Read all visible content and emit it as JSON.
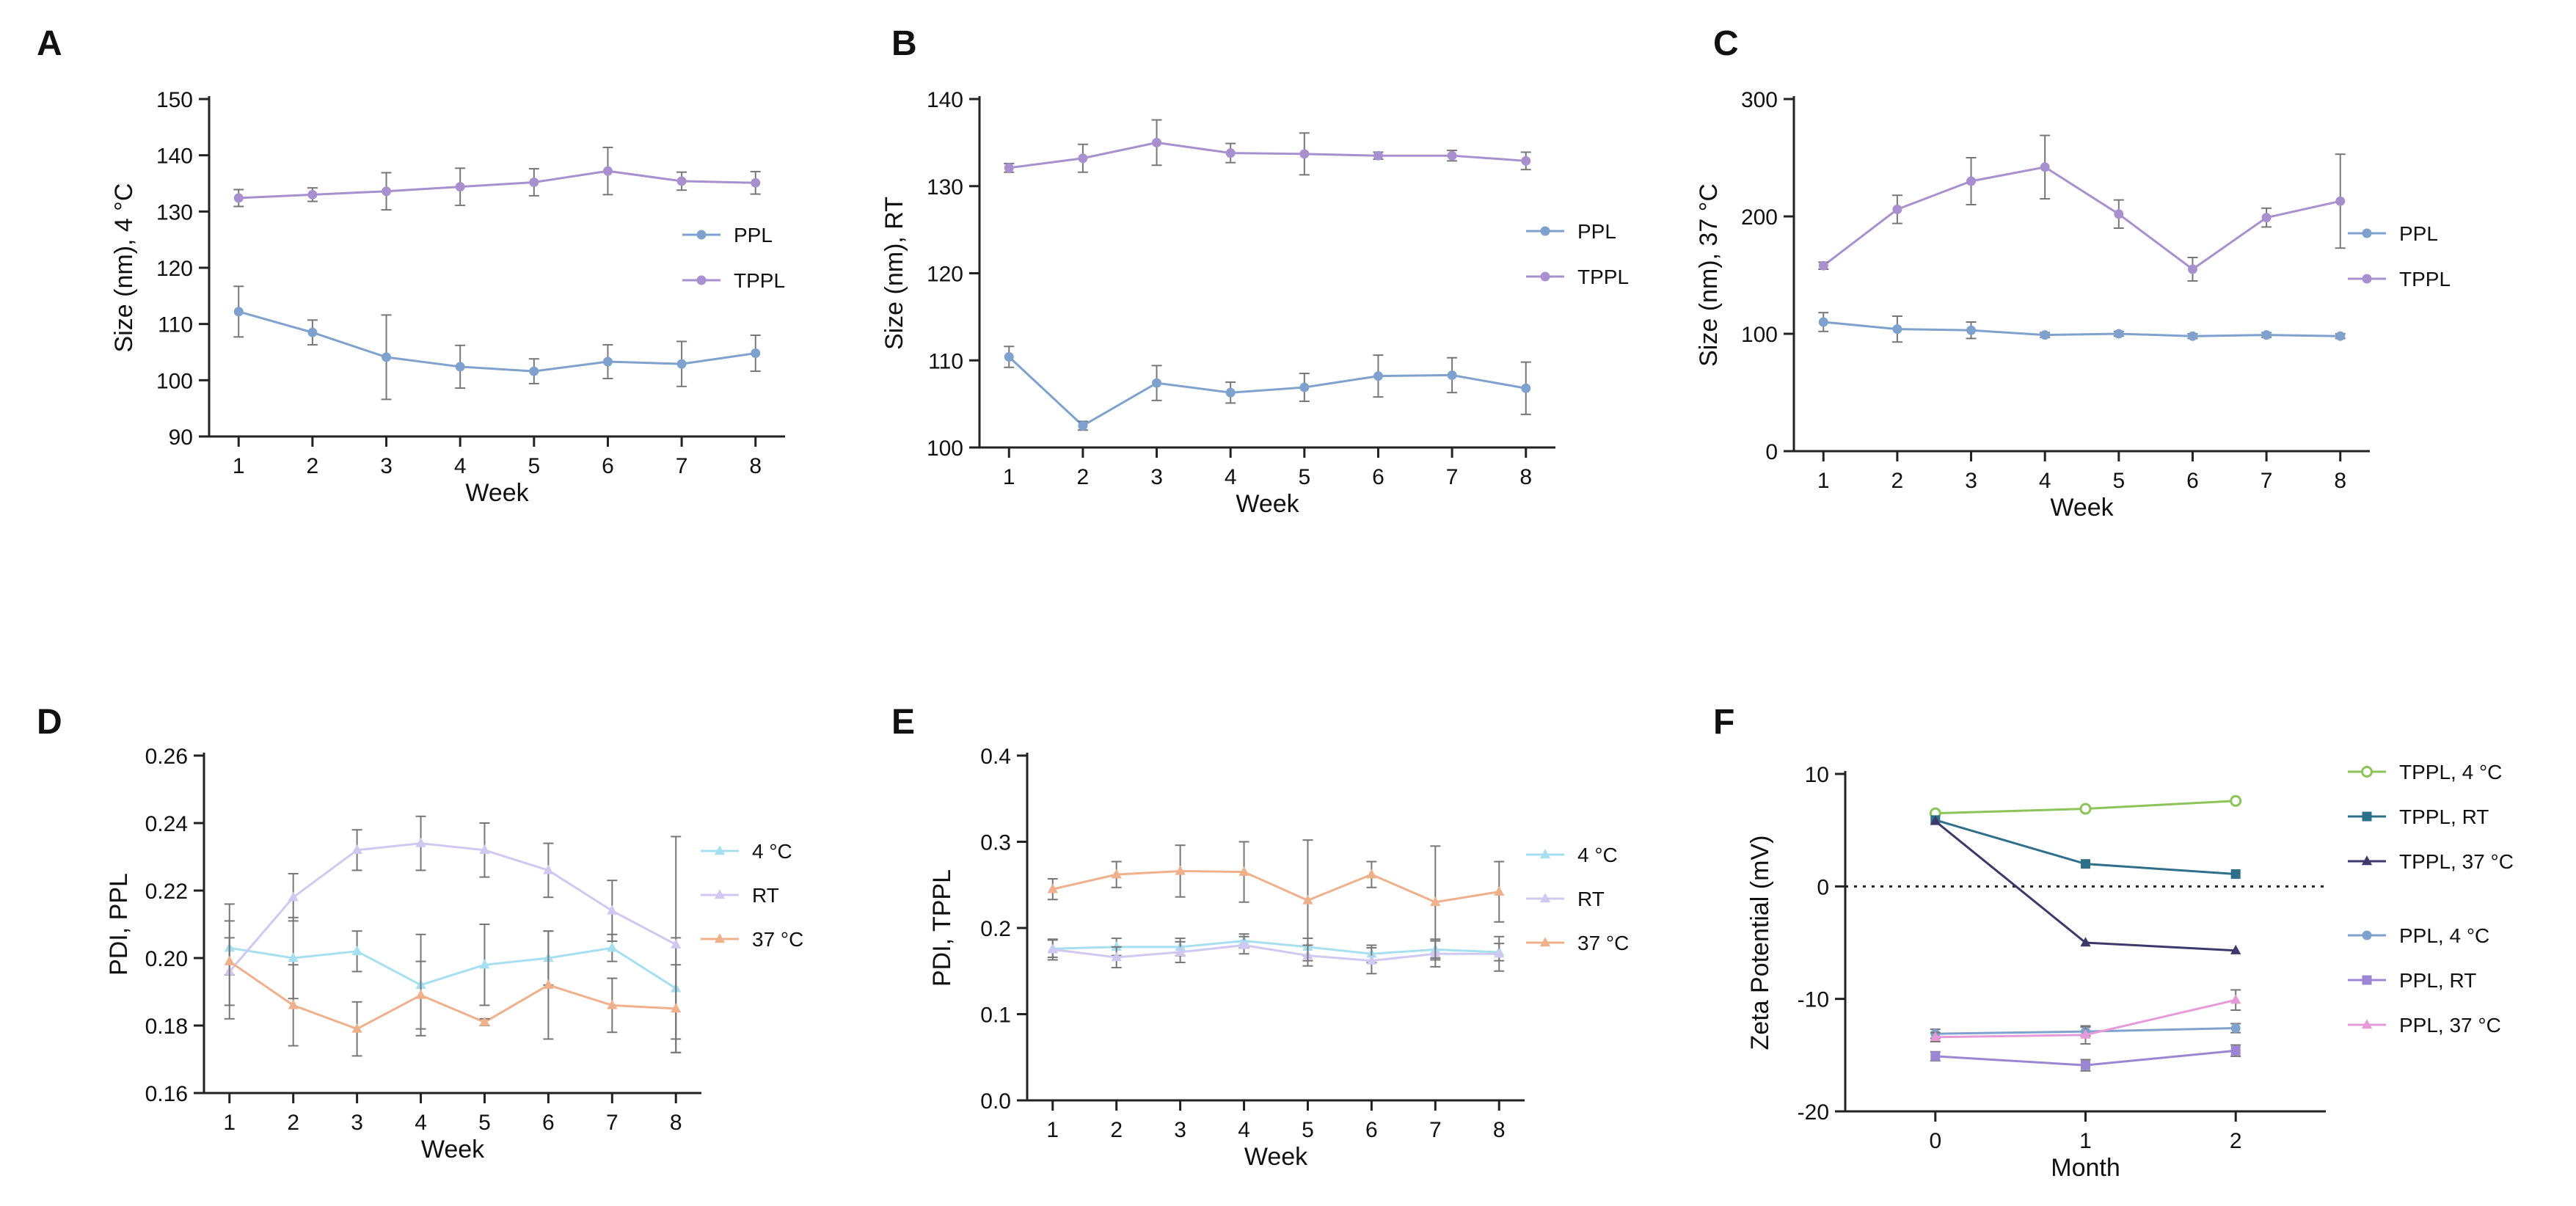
{
  "chart_data": [
    {
      "id": "A",
      "panel_label": "A",
      "type": "line",
      "xlabel": "Week",
      "ylabel": "Size (nm), 4 °C",
      "x": [
        1,
        2,
        3,
        4,
        5,
        6,
        7,
        8
      ],
      "x_tick_labels": [
        "1",
        "2",
        "3",
        "4",
        "5",
        "6",
        "7",
        "8"
      ],
      "xlim": [
        0.6,
        8.4
      ],
      "ylim": [
        90,
        150
      ],
      "y_ticks": [
        90,
        100,
        110,
        120,
        130,
        140,
        150
      ],
      "y_tick_labels": [
        "90",
        "100",
        "110",
        "120",
        "130",
        "140",
        "150"
      ],
      "legend": "right",
      "series": [
        {
          "name": "PPL",
          "color": "#7ea1cd",
          "marker": "circle",
          "values": [
            112.2,
            108.5,
            104.1,
            102.4,
            101.6,
            103.3,
            102.9,
            104.8
          ],
          "errors": [
            4.5,
            2.2,
            7.5,
            3.8,
            2.2,
            3.0,
            4.0,
            3.2
          ]
        },
        {
          "name": "TPPL",
          "color": "#a890cf",
          "marker": "circle",
          "values": [
            132.4,
            133.0,
            133.6,
            134.4,
            135.2,
            137.2,
            135.4,
            135.1
          ],
          "errors": [
            1.5,
            1.2,
            3.3,
            3.3,
            2.4,
            4.2,
            1.6,
            2.0
          ]
        }
      ]
    },
    {
      "id": "B",
      "panel_label": "B",
      "type": "line",
      "xlabel": "Week",
      "ylabel": "Size (nm),  RT",
      "x": [
        1,
        2,
        3,
        4,
        5,
        6,
        7,
        8
      ],
      "x_tick_labels": [
        "1",
        "2",
        "3",
        "4",
        "5",
        "6",
        "7",
        "8"
      ],
      "xlim": [
        0.6,
        8.4
      ],
      "ylim": [
        100,
        140
      ],
      "y_ticks": [
        100,
        110,
        120,
        130,
        140
      ],
      "y_tick_labels": [
        "100",
        "110",
        "120",
        "130",
        "140"
      ],
      "legend": "right",
      "series": [
        {
          "name": "PPL",
          "color": "#7ea1cd",
          "marker": "circle",
          "values": [
            110.4,
            102.5,
            107.4,
            106.3,
            106.9,
            108.2,
            108.3,
            106.8
          ],
          "errors": [
            1.2,
            0.5,
            2.0,
            1.2,
            1.6,
            2.4,
            2.0,
            3.0
          ]
        },
        {
          "name": "TPPL",
          "color": "#a890cf",
          "marker": "circle",
          "values": [
            132.1,
            133.2,
            135.0,
            133.8,
            133.7,
            133.5,
            133.5,
            132.9
          ],
          "errors": [
            0.5,
            1.6,
            2.6,
            1.1,
            2.4,
            0.4,
            0.6,
            1.0
          ]
        }
      ]
    },
    {
      "id": "C",
      "panel_label": "C",
      "type": "line",
      "xlabel": "Week",
      "ylabel": "Size (nm), 37 °C",
      "x": [
        1,
        2,
        3,
        4,
        5,
        6,
        7,
        8
      ],
      "x_tick_labels": [
        "1",
        "2",
        "3",
        "4",
        "5",
        "6",
        "7",
        "8"
      ],
      "xlim": [
        0.6,
        8.4
      ],
      "ylim": [
        0,
        300
      ],
      "y_ticks": [
        0,
        100,
        200,
        300
      ],
      "y_tick_labels": [
        "0",
        "100",
        "200",
        "300"
      ],
      "legend": "right",
      "series": [
        {
          "name": "PPL",
          "color": "#7ea1cd",
          "marker": "circle",
          "values": [
            110,
            104,
            103,
            99,
            100,
            98,
            99,
            98
          ],
          "errors": [
            8,
            11,
            7,
            2,
            2,
            2,
            2,
            2
          ]
        },
        {
          "name": "TPPL",
          "color": "#a890cf",
          "marker": "circle",
          "values": [
            158,
            206,
            230,
            242,
            202,
            155,
            199,
            213
          ],
          "errors": [
            3,
            12,
            20,
            27,
            12,
            10,
            8,
            40
          ]
        }
      ]
    },
    {
      "id": "D",
      "panel_label": "D",
      "type": "line",
      "xlabel": "Week",
      "ylabel": "PDI, PPL",
      "x": [
        1,
        2,
        3,
        4,
        5,
        6,
        7,
        8
      ],
      "x_tick_labels": [
        "1",
        "2",
        "3",
        "4",
        "5",
        "6",
        "7",
        "8"
      ],
      "xlim": [
        0.6,
        8.4
      ],
      "ylim": [
        0.16,
        0.26
      ],
      "y_ticks": [
        0.16,
        0.18,
        0.2,
        0.22,
        0.24,
        0.26
      ],
      "y_tick_labels": [
        "0.16",
        "0.18",
        "0.20",
        "0.22",
        "0.24",
        "0.26"
      ],
      "legend": "right",
      "series": [
        {
          "name": "4 °C",
          "color": "#a6dff0",
          "marker": "triangle",
          "values": [
            0.203,
            0.2,
            0.202,
            0.192,
            0.198,
            0.2,
            0.203,
            0.191
          ],
          "errors": [
            0.008,
            0.012,
            0.006,
            0.015,
            0.012,
            0.008,
            0.004,
            0.015
          ]
        },
        {
          "name": "RT",
          "color": "#d0c8f0",
          "marker": "triangle",
          "values": [
            0.196,
            0.218,
            0.232,
            0.234,
            0.232,
            0.226,
            0.214,
            0.204
          ],
          "errors": [
            0.01,
            0.007,
            0.006,
            0.008,
            0.008,
            0.008,
            0.009,
            0.032
          ]
        },
        {
          "name": "37 °C",
          "color": "#efb08c",
          "marker": "triangle",
          "values": [
            0.199,
            0.186,
            0.179,
            0.189,
            0.181,
            0.192,
            0.186,
            0.185
          ],
          "errors": [
            0.017,
            0.012,
            0.008,
            0.01,
            0.001,
            0.016,
            0.008,
            0.013
          ]
        }
      ]
    },
    {
      "id": "E",
      "panel_label": "E",
      "type": "line",
      "xlabel": "Week",
      "ylabel": "PDI, TPPL",
      "x": [
        1,
        2,
        3,
        4,
        5,
        6,
        7,
        8
      ],
      "x_tick_labels": [
        "1",
        "2",
        "3",
        "4",
        "5",
        "6",
        "7",
        "8"
      ],
      "xlim": [
        0.6,
        8.4
      ],
      "ylim": [
        0,
        0.4
      ],
      "y_ticks": [
        0,
        0.1,
        0.2,
        0.3,
        0.4
      ],
      "y_tick_labels": [
        "0.0",
        "0.1",
        "0.2",
        "0.3",
        "0.4"
      ],
      "legend": "right",
      "series": [
        {
          "name": "4 °C",
          "color": "#a6dff0",
          "marker": "triangle",
          "values": [
            0.176,
            0.178,
            0.178,
            0.185,
            0.178,
            0.17,
            0.175,
            0.172
          ],
          "errors": [
            0.01,
            0.01,
            0.01,
            0.008,
            0.01,
            0.01,
            0.012,
            0.01
          ]
        },
        {
          "name": "RT",
          "color": "#d0c8f0",
          "marker": "triangle",
          "values": [
            0.175,
            0.166,
            0.172,
            0.18,
            0.168,
            0.162,
            0.17,
            0.17
          ],
          "errors": [
            0.012,
            0.012,
            0.012,
            0.01,
            0.012,
            0.015,
            0.015,
            0.02
          ]
        },
        {
          "name": "37 °C",
          "color": "#efb08c",
          "marker": "triangle",
          "values": [
            0.245,
            0.262,
            0.266,
            0.265,
            0.232,
            0.262,
            0.23,
            0.242
          ],
          "errors": [
            0.012,
            0.015,
            0.03,
            0.035,
            0.07,
            0.015,
            0.065,
            0.035
          ]
        }
      ]
    },
    {
      "id": "F",
      "panel_label": "F",
      "type": "line",
      "xlabel": "Month",
      "ylabel": "Zeta Potential (mV)",
      "x": [
        0,
        1,
        2
      ],
      "x_tick_labels": [
        "0",
        "1",
        "2"
      ],
      "xlim": [
        -0.6,
        2.6
      ],
      "ylim": [
        -20,
        10
      ],
      "y_ticks": [
        -20,
        -10,
        0,
        10
      ],
      "y_tick_labels": [
        "-20",
        "-10",
        "0",
        "10"
      ],
      "reference_line_y": 0,
      "legend": "right",
      "series": [
        {
          "name": "TPPL, 4 °C",
          "color": "#8cc45a",
          "marker": "circle-open",
          "values": [
            6.5,
            6.9,
            7.6
          ],
          "errors": [
            0,
            0,
            0
          ]
        },
        {
          "name": "TPPL, RT",
          "color": "#2e6f8a",
          "marker": "square",
          "values": [
            5.9,
            2.0,
            1.1
          ],
          "errors": [
            0,
            0,
            0
          ]
        },
        {
          "name": "TPPL, 37 °C",
          "color": "#3c3a6a",
          "marker": "triangle",
          "values": [
            5.8,
            -5.0,
            -5.7
          ],
          "errors": [
            0,
            0,
            0
          ]
        },
        {
          "name": "PPL, 4 °C",
          "color": "#7ea1cd",
          "marker": "circle",
          "values": [
            -13.1,
            -12.9,
            -12.6
          ],
          "errors": [
            0.4,
            0.4,
            0.4
          ]
        },
        {
          "name": "PPL, RT",
          "color": "#9b86d2",
          "marker": "square",
          "values": [
            -15.1,
            -15.9,
            -14.6
          ],
          "errors": [
            0.4,
            0.5,
            0.5
          ]
        },
        {
          "name": "PPL, 37 °C",
          "color": "#e69ad8",
          "marker": "triangle",
          "values": [
            -13.4,
            -13.2,
            -10.1
          ],
          "errors": [
            0.4,
            0.8,
            0.9
          ]
        }
      ]
    }
  ]
}
